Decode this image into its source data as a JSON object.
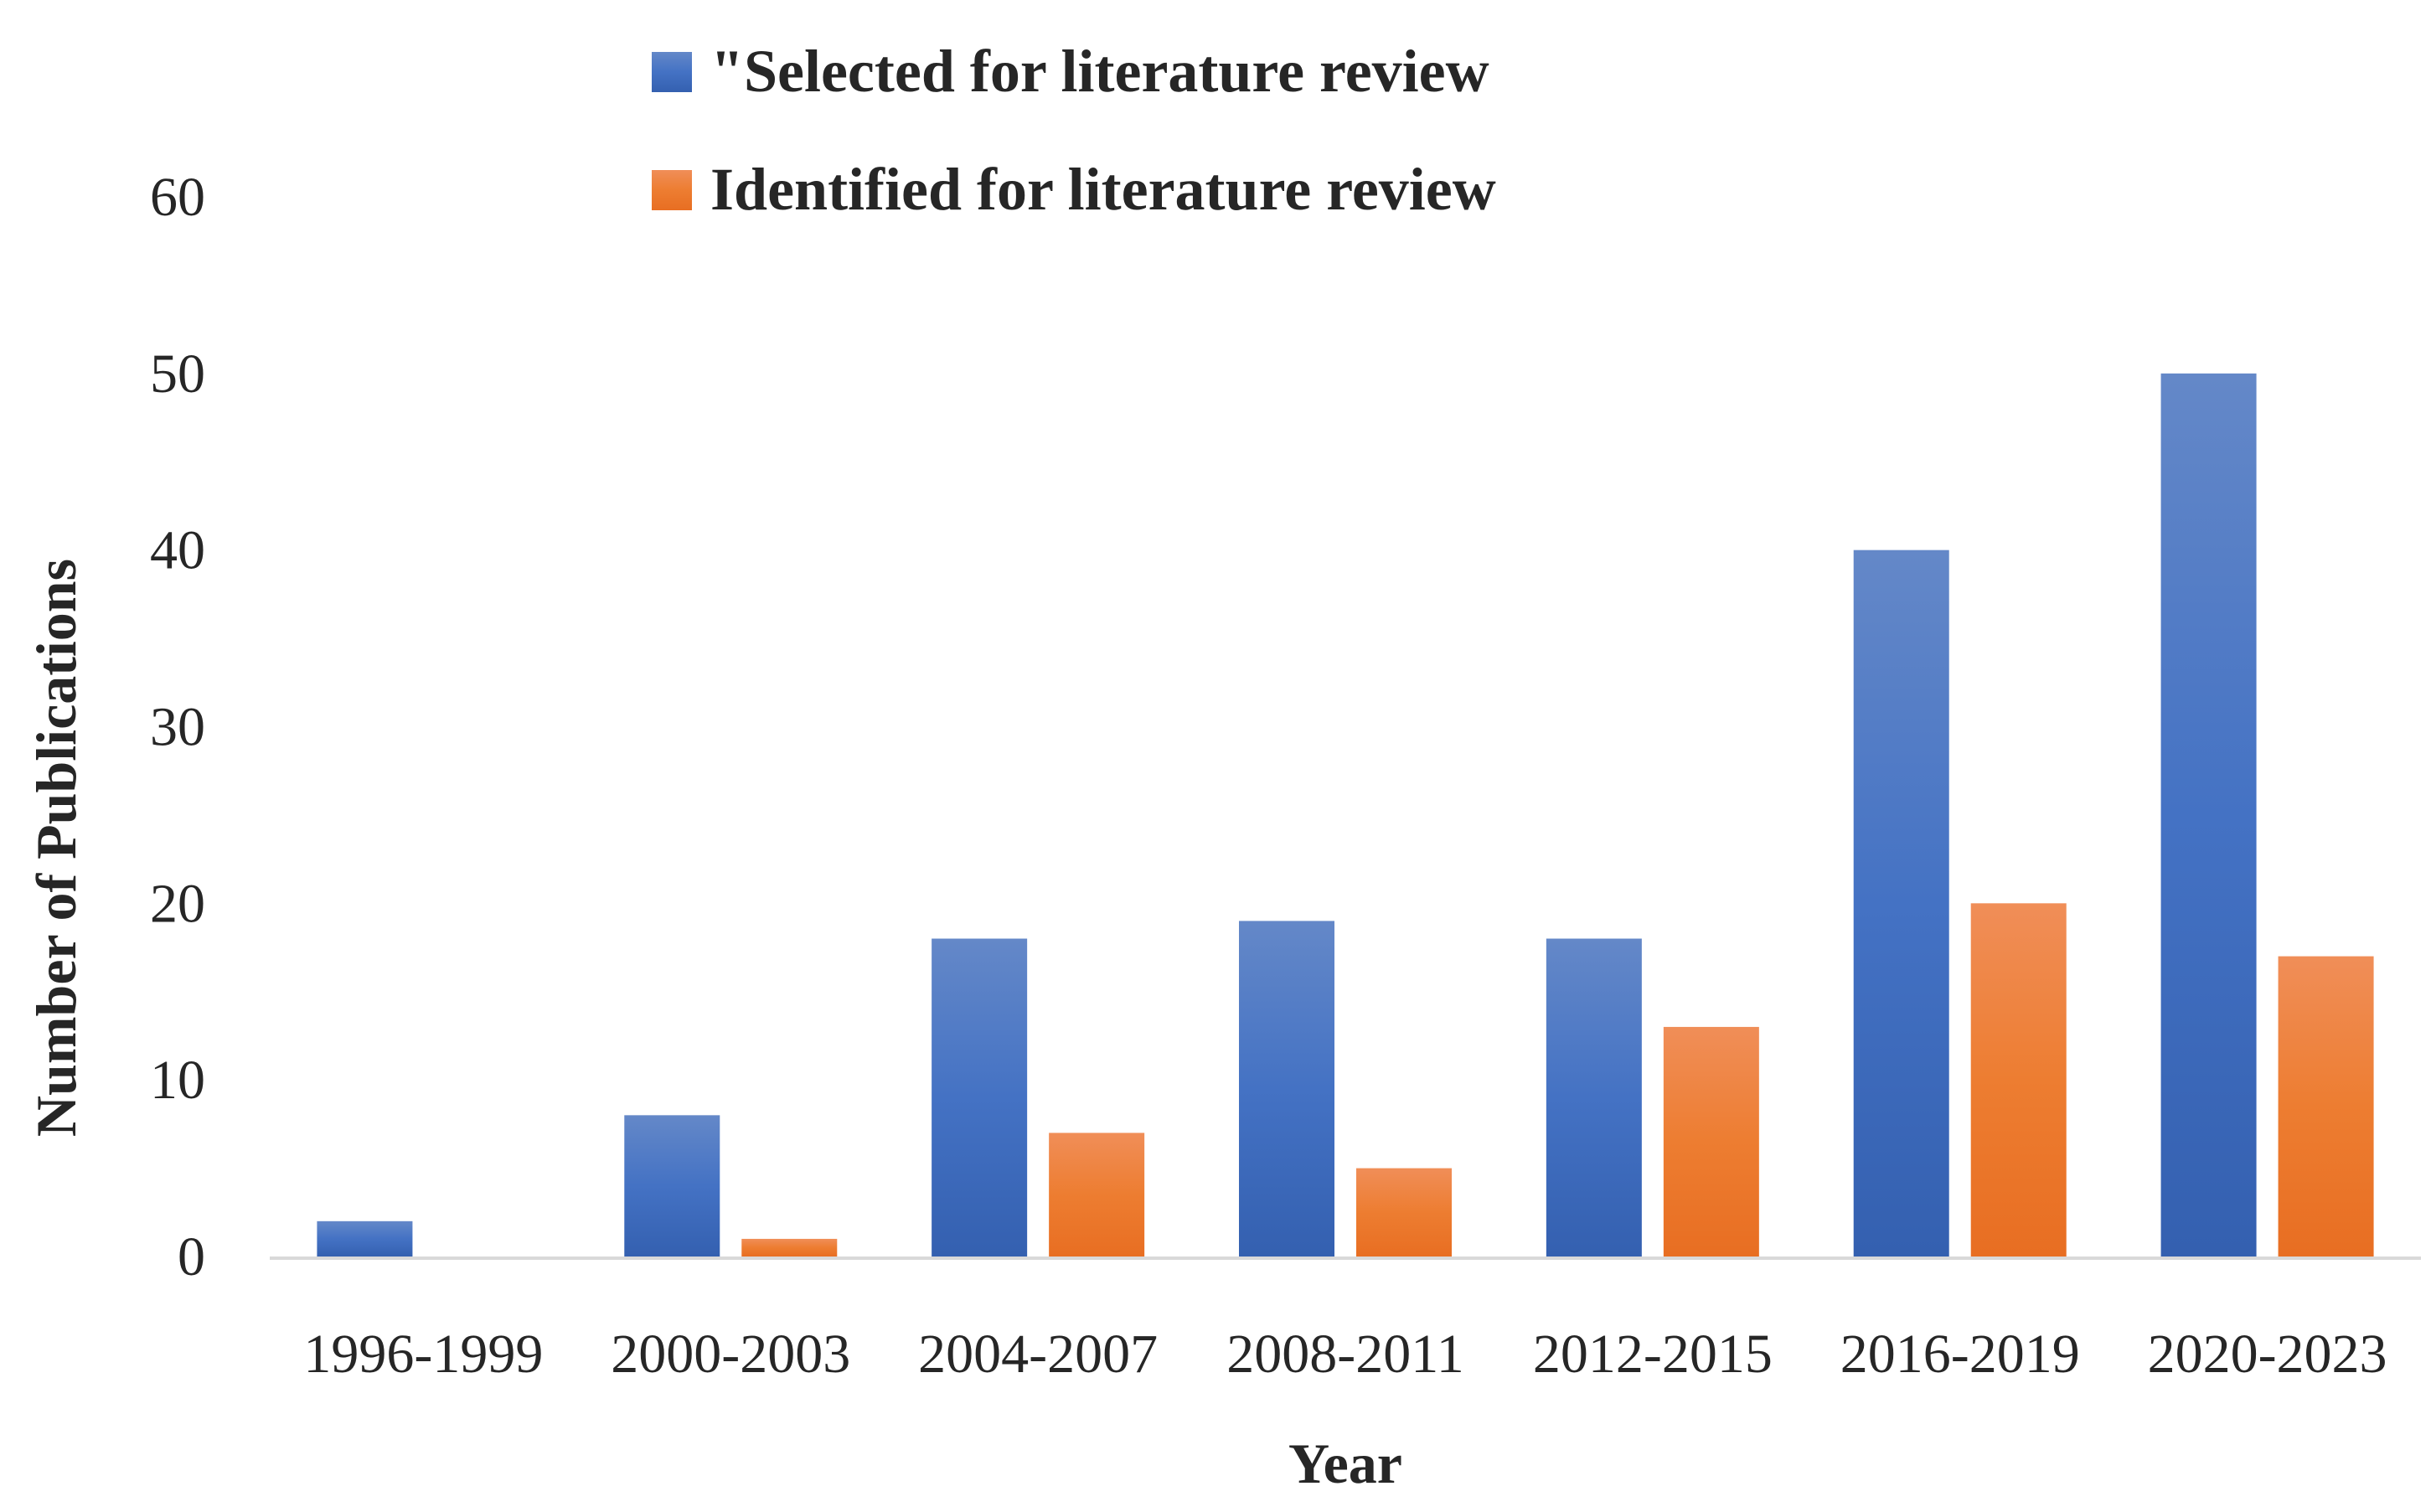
{
  "chart_data": {
    "type": "bar",
    "title": "",
    "xlabel": "Year",
    "ylabel": "Number of  Publications",
    "ylim": [
      0,
      60
    ],
    "yticks": [
      0,
      10,
      20,
      30,
      40,
      50,
      60
    ],
    "grid": false,
    "legend_position": "top-center",
    "categories": [
      "1996-1999",
      "2000-2003",
      "2004-2007",
      "2008-2011",
      "2012-2015",
      "2016-2019",
      "2020-2023"
    ],
    "series": [
      {
        "name": "\"Selected for literature review",
        "color": "#4472C4",
        "color_light": "#6488C8",
        "color_dark": "#3460B0",
        "values": [
          2,
          8,
          18,
          19,
          18,
          40,
          50
        ]
      },
      {
        "name": "Identified for literature review",
        "color": "#ED7D31",
        "color_light": "#F08E58",
        "color_dark": "#E86E22",
        "values": [
          0,
          1,
          7,
          5,
          13,
          20,
          17
        ]
      }
    ],
    "axis_color": "#D9D9D9"
  }
}
